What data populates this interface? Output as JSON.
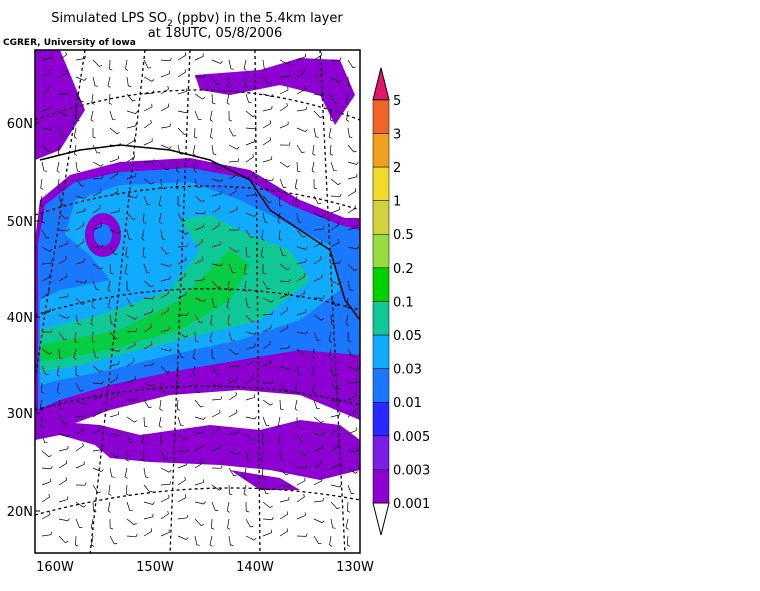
{
  "title": {
    "prefix": "Simulated LPS SO",
    "subscript": "2",
    "suffix": " (ppbv) in the 5.4km layer",
    "line2": "at 18UTC, 05/8/2006"
  },
  "credit": "CGRER, University of Iowa",
  "lat_labels": [
    "60N",
    "50N",
    "40N",
    "30N",
    "20N"
  ],
  "lon_labels": [
    "160W",
    "150W",
    "140W",
    "130W"
  ],
  "colorbar": {
    "levels": [
      "0.001",
      "0.003",
      "0.005",
      "0.01",
      "0.03",
      "0.05",
      "0.1",
      "0.2",
      "0.5",
      "1",
      "2",
      "3",
      "5"
    ],
    "colors": [
      "#ffffff",
      "#8c00d2",
      "#7a1ee6",
      "#2828ff",
      "#1a78ff",
      "#10aaff",
      "#10c896",
      "#00d200",
      "#96dc3c",
      "#d2d23c",
      "#f0dc28",
      "#f0a01e",
      "#f06428",
      "#e6146e"
    ]
  }
}
